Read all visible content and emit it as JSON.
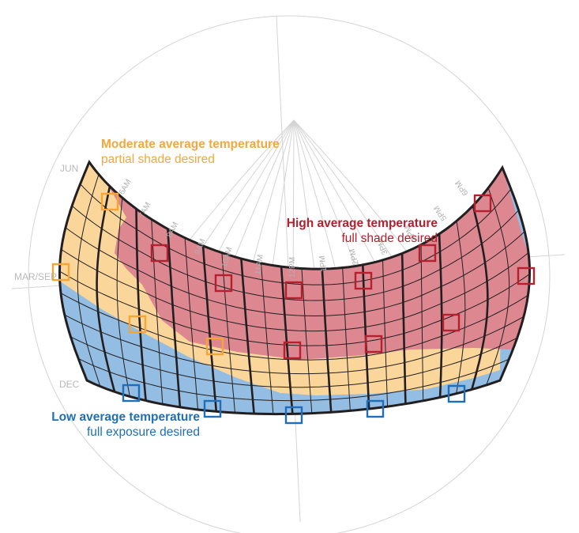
{
  "colors": {
    "high": "#dd8791",
    "moderate": "#fbd69b",
    "low": "#93bde2",
    "high_text": "#b1202f",
    "moderate_text": "#f2a83d",
    "low_text": "#1f6fb6",
    "marker_high": "#b5202e",
    "marker_moderate": "#f5a533",
    "marker_low": "#1e6fb9",
    "grid": "#d4d4d4",
    "outline": "#231f20",
    "side_label": "#b9b9b9"
  },
  "annotations": {
    "moderate_title": "Moderate average temperature",
    "moderate_sub": "partial shade desired",
    "high_title": "High average temperature",
    "high_sub": "full shade desired",
    "low_title": "Low average temperature",
    "low_sub": "full exposure desired"
  },
  "side_labels": {
    "jun": "JUN",
    "mar_sep": "MAR/SEP",
    "dec": "DEC"
  },
  "hour_labels": [
    "6AM",
    "7AM",
    "8AM",
    "9AM",
    "10AM",
    "11AM",
    "12PM",
    "1PM",
    "2PM",
    "3PM",
    "4PM",
    "5PM",
    "6PM"
  ]
}
